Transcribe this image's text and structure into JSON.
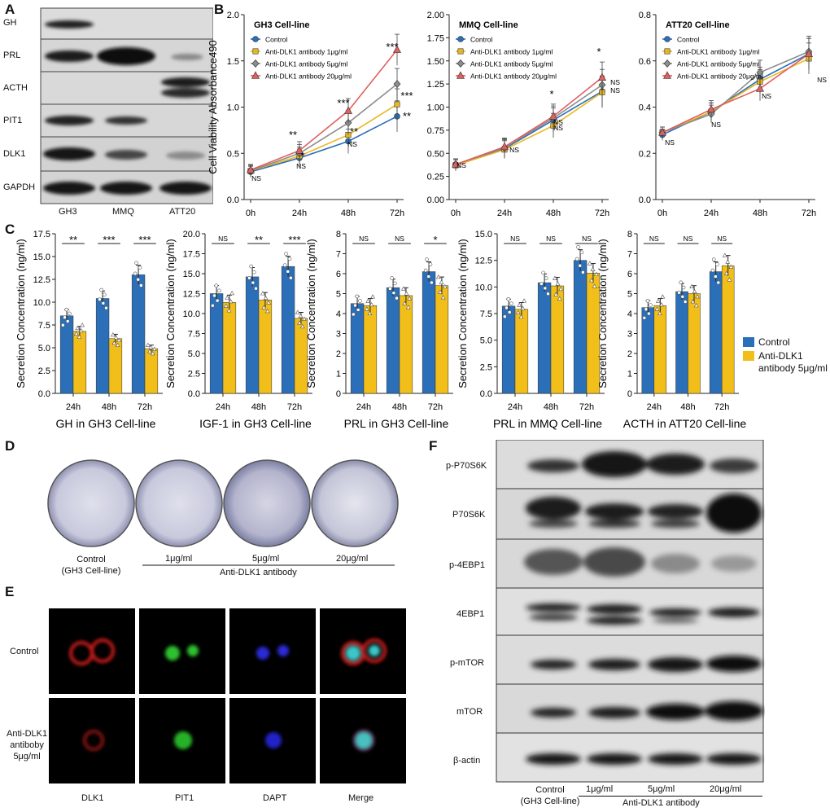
{
  "panels": {
    "A": "A",
    "B": "B",
    "C": "C",
    "D": "D",
    "E": "E",
    "F": "F"
  },
  "panelA": {
    "rows": [
      "GH",
      "PRL",
      "ACTH",
      "PIT1",
      "DLK1",
      "GAPDH"
    ],
    "lanes": [
      "GH3",
      "MMQ",
      "ATT20"
    ]
  },
  "chart_data": [
    {
      "type": "line",
      "title": "GH3 Cell-line",
      "ylabel": "Cell Viability Absorbance490",
      "x": [
        "0h",
        "24h",
        "48h",
        "72h"
      ],
      "ylim": [
        0,
        2.0
      ],
      "yticks": [
        "0.0",
        "0.5",
        "1.0",
        "1.5",
        "2.0"
      ],
      "series": [
        {
          "name": "Control",
          "color": "#2b6fb8",
          "marker": "circle",
          "values": [
            0.3,
            0.45,
            0.63,
            0.9
          ]
        },
        {
          "name": "Anti-DLK1 antibody 1μg/ml",
          "color": "#e8b820",
          "marker": "square",
          "values": [
            0.31,
            0.47,
            0.7,
            1.03
          ]
        },
        {
          "name": "Anti-DLK1 antibody 5μg/ml",
          "color": "#8c8c8c",
          "marker": "diamond",
          "values": [
            0.31,
            0.5,
            0.83,
            1.25
          ]
        },
        {
          "name": "Anti-DLK1 antibody 20μg/ml",
          "color": "#e06060",
          "marker": "triangle",
          "values": [
            0.32,
            0.53,
            0.96,
            1.62
          ]
        }
      ],
      "annotations": [
        "NS",
        "NS",
        "**",
        "*",
        "***",
        "**",
        "NS",
        "***",
        "***",
        "**"
      ]
    },
    {
      "type": "line",
      "title": "MMQ Cell-line",
      "x": [
        "0h",
        "24h",
        "48h",
        "72h"
      ],
      "ylim": [
        0,
        2.0
      ],
      "yticks": [
        "0.00",
        "0.25",
        "0.50",
        "0.75",
        "1.00",
        "1.25",
        "1.50",
        "1.75",
        "2.00"
      ],
      "series": [
        {
          "name": "Control",
          "color": "#2b6fb8",
          "marker": "circle",
          "values": [
            0.38,
            0.55,
            0.86,
            1.17
          ]
        },
        {
          "name": "Anti-DLK1 antibody 1μg/ml",
          "color": "#e8b820",
          "marker": "square",
          "values": [
            0.37,
            0.54,
            0.8,
            1.16
          ]
        },
        {
          "name": "Anti-DLK1 antibody 5μg/ml",
          "color": "#8c8c8c",
          "marker": "diamond",
          "values": [
            0.38,
            0.56,
            0.88,
            1.24
          ]
        },
        {
          "name": "Anti-DLK1 antibody 20μg/ml",
          "color": "#e06060",
          "marker": "triangle",
          "values": [
            0.38,
            0.57,
            0.9,
            1.32
          ]
        }
      ],
      "annotations": [
        "NS",
        "NS",
        "NS",
        "NS",
        "*",
        "NS",
        "NS",
        "*"
      ]
    },
    {
      "type": "line",
      "title": "ATT20 Cell-line",
      "x": [
        "0h",
        "24h",
        "48h",
        "72h"
      ],
      "ylim": [
        0,
        0.8
      ],
      "yticks": [
        "0.0",
        "0.2",
        "0.4",
        "0.6",
        "0.8"
      ],
      "series": [
        {
          "name": "Control",
          "color": "#2b6fb8",
          "marker": "circle",
          "values": [
            0.28,
            0.38,
            0.52,
            0.63
          ]
        },
        {
          "name": "Anti-DLK1 antibody 1μg/ml",
          "color": "#e8b820",
          "marker": "square",
          "values": [
            0.29,
            0.38,
            0.51,
            0.61
          ]
        },
        {
          "name": "Anti-DLK1 antibody 5μg/ml",
          "color": "#8c8c8c",
          "marker": "diamond",
          "values": [
            0.29,
            0.37,
            0.55,
            0.64
          ]
        },
        {
          "name": "Anti-DLK1 antibody 20μg/ml",
          "color": "#e06060",
          "marker": "triangle",
          "values": [
            0.29,
            0.39,
            0.48,
            0.63
          ]
        }
      ],
      "annotations": [
        "NS",
        "NS",
        "NS",
        "NS"
      ]
    },
    {
      "type": "bar",
      "xlabel": "GH in GH3 Cell-line",
      "ylabel": "Secretion Concentration (ng/ml)",
      "categories": [
        "24h",
        "48h",
        "72h"
      ],
      "ylim": [
        0,
        17.5
      ],
      "yticks": [
        "0.0",
        "2.5",
        "5.0",
        "7.5",
        "10.0",
        "12.5",
        "15.0",
        "17.5"
      ],
      "series": [
        {
          "name": "Control",
          "values": [
            8.5,
            10.4,
            13.0
          ]
        },
        {
          "name": "Anti-DLK1 antibody 5μg/ml",
          "values": [
            6.8,
            6.0,
            4.9
          ]
        }
      ],
      "significance": [
        "**",
        "***",
        "***"
      ]
    },
    {
      "type": "bar",
      "xlabel": "IGF-1 in GH3 Cell-line",
      "ylabel": "Secretion Concentration (ng/ml)",
      "categories": [
        "24h",
        "48h",
        "72h"
      ],
      "ylim": [
        0,
        20.0
      ],
      "yticks": [
        "0.0",
        "2.5",
        "5.0",
        "7.5",
        "10.0",
        "12.5",
        "15.0",
        "17.5",
        "20.0"
      ],
      "series": [
        {
          "name": "Control",
          "values": [
            12.5,
            14.6,
            15.9
          ]
        },
        {
          "name": "Anti-DLK1 antibody 5μg/ml",
          "values": [
            11.4,
            11.7,
            9.4
          ]
        }
      ],
      "significance": [
        "NS",
        "**",
        "***"
      ]
    },
    {
      "type": "bar",
      "xlabel": "PRL in GH3 Cell-line",
      "ylabel": "Secretion Concentration (ng/ml)",
      "categories": [
        "24h",
        "48h",
        "72h"
      ],
      "ylim": [
        0,
        8
      ],
      "yticks": [
        "0",
        "1",
        "2",
        "3",
        "4",
        "5",
        "6",
        "7",
        "8"
      ],
      "series": [
        {
          "name": "Control",
          "values": [
            4.5,
            5.3,
            6.1
          ]
        },
        {
          "name": "Anti-DLK1 antibody 5μg/ml",
          "values": [
            4.4,
            4.9,
            5.4
          ]
        }
      ],
      "significance": [
        "NS",
        "NS",
        "*"
      ]
    },
    {
      "type": "bar",
      "xlabel": "PRL in MMQ Cell-line",
      "ylabel": "Secretion Concentration (ng/ml)",
      "categories": [
        "24h",
        "48h",
        "72h"
      ],
      "ylim": [
        0,
        15.0
      ],
      "yticks": [
        "0.0",
        "2.5",
        "5.0",
        "7.5",
        "10.0",
        "12.5",
        "15.0"
      ],
      "series": [
        {
          "name": "Control",
          "values": [
            8.2,
            10.4,
            12.5
          ]
        },
        {
          "name": "Anti-DLK1 antibody 5μg/ml",
          "values": [
            7.9,
            10.1,
            11.3
          ]
        }
      ],
      "significance": [
        "NS",
        "NS",
        "NS"
      ]
    },
    {
      "type": "bar",
      "xlabel": "ACTH in ATT20 Cell-line",
      "ylabel": "Secretion Concentration (ng/ml)",
      "categories": [
        "24h",
        "48h",
        "72h"
      ],
      "ylim": [
        0,
        8
      ],
      "yticks": [
        "0",
        "1",
        "2",
        "3",
        "4",
        "5",
        "6",
        "7",
        "8"
      ],
      "series": [
        {
          "name": "Control",
          "values": [
            4.3,
            5.1,
            6.1
          ]
        },
        {
          "name": "Anti-DLK1 antibody 5μg/ml",
          "values": [
            4.4,
            5.0,
            6.4
          ]
        }
      ],
      "significance": [
        "NS",
        "NS",
        "NS"
      ]
    }
  ],
  "barLegend": {
    "control": "Control",
    "treat1": "Anti-DLK1",
    "treat2": "antibody 5μg/ml",
    "control_color": "#2b6fb8",
    "treat_color": "#f2bf1a"
  },
  "panelD": {
    "control1": "Control",
    "control2": "(GH3 Cell-line)",
    "doses": [
      "1μg/ml",
      "5μg/ml",
      "20μg/ml"
    ],
    "group": "Anti-DLK1 antibody"
  },
  "panelE": {
    "row1": "Control",
    "row2a": "Anti-DLK1",
    "row2b": "antiboby",
    "row2c": "5μg/ml",
    "cols": [
      "DLK1",
      "PIT1",
      "DAPT",
      "Merge"
    ]
  },
  "panelF": {
    "rows": [
      "p-P70S6K",
      "P70S6K",
      "p-4EBP1",
      "4EBP1",
      "p-mTOR",
      "mTOR",
      "β-actin"
    ],
    "control1": "Control",
    "control2": "(GH3 Cell-line)",
    "doses": [
      "1μg/ml",
      "5μg/ml",
      "20μg/ml"
    ],
    "group": "Anti-DLK1 antibody"
  }
}
